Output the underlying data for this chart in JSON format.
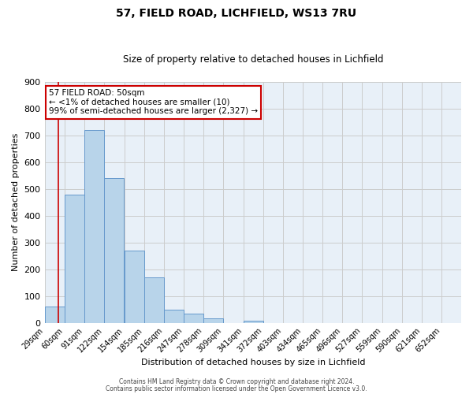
{
  "title": "57, FIELD ROAD, LICHFIELD, WS13 7RU",
  "subtitle": "Size of property relative to detached houses in Lichfield",
  "xlabel": "Distribution of detached houses by size in Lichfield",
  "ylabel": "Number of detached properties",
  "bar_values": [
    60,
    480,
    720,
    540,
    270,
    170,
    48,
    35,
    15,
    0,
    7,
    0,
    0,
    0,
    0,
    0,
    0,
    0,
    0,
    0
  ],
  "bin_labels": [
    "29sqm",
    "60sqm",
    "91sqm",
    "122sqm",
    "154sqm",
    "185sqm",
    "216sqm",
    "247sqm",
    "278sqm",
    "309sqm",
    "341sqm",
    "372sqm",
    "403sqm",
    "434sqm",
    "465sqm",
    "496sqm",
    "527sqm",
    "559sqm",
    "590sqm",
    "621sqm",
    "652sqm"
  ],
  "bar_color": "#b8d4ea",
  "bar_edge_color": "#6699cc",
  "ylim": [
    0,
    900
  ],
  "yticks": [
    0,
    100,
    200,
    300,
    400,
    500,
    600,
    700,
    800,
    900
  ],
  "property_line_x": 50,
  "annotation_line1": "57 FIELD ROAD: 50sqm",
  "annotation_line2": "← <1% of detached houses are smaller (10)",
  "annotation_line3": "99% of semi-detached houses are larger (2,327) →",
  "annotation_box_color": "#ffffff",
  "annotation_box_edge": "#cc0000",
  "vline_color": "#cc0000",
  "grid_color": "#cccccc",
  "footer1": "Contains HM Land Registry data © Crown copyright and database right 2024.",
  "footer2": "Contains public sector information licensed under the Open Government Licence v3.0.",
  "bin_edges": [
    29,
    60,
    91,
    122,
    154,
    185,
    216,
    247,
    278,
    309,
    341,
    372,
    403,
    434,
    465,
    496,
    527,
    559,
    590,
    621,
    652
  ],
  "background_color": "#e8f0f8",
  "title_fontsize": 10,
  "subtitle_fontsize": 8.5,
  "ylabel_fontsize": 8,
  "xlabel_fontsize": 8,
  "ytick_fontsize": 8,
  "xtick_fontsize": 7
}
